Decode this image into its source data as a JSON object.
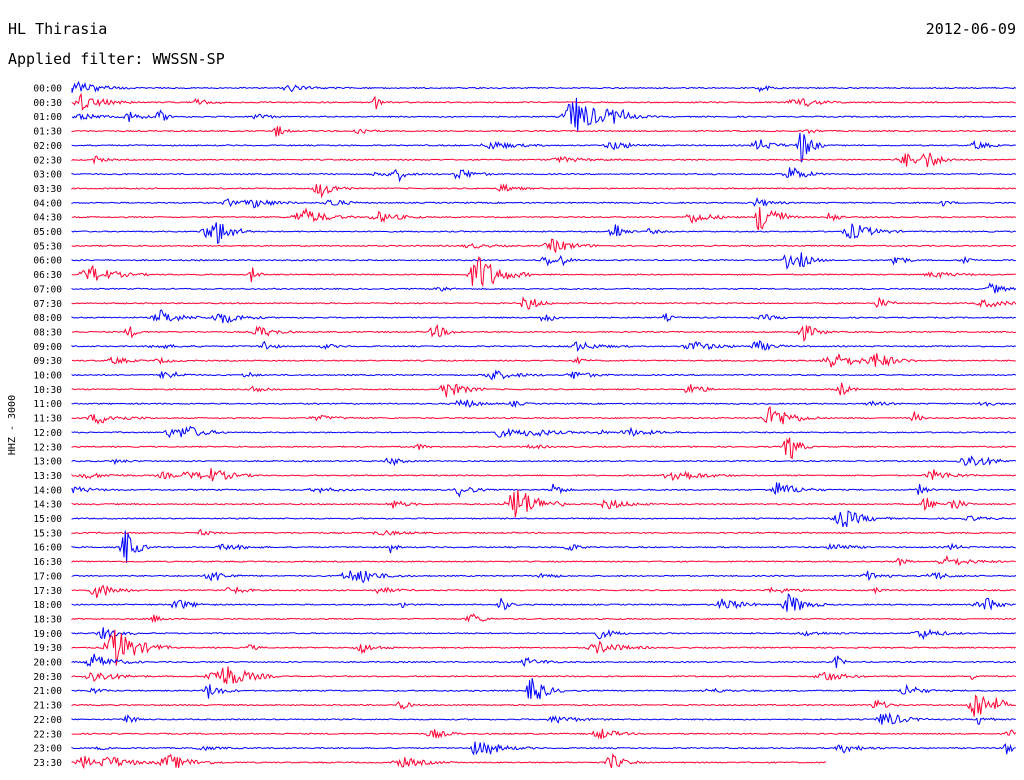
{
  "header": {
    "station": "HL Thirasia",
    "date": "2012-06-09",
    "filter_label": "Applied filter: WWSSN-SP"
  },
  "chart_data": {
    "type": "line",
    "ylabel": "HHZ - 3000",
    "grid": false,
    "series_colors": [
      "#0000ff",
      "#ff0033"
    ],
    "rows": [
      "00:00",
      "00:30",
      "01:00",
      "01:30",
      "02:00",
      "02:30",
      "03:00",
      "03:30",
      "04:00",
      "04:30",
      "05:00",
      "05:30",
      "06:00",
      "06:30",
      "07:00",
      "07:30",
      "08:00",
      "08:30",
      "09:00",
      "09:30",
      "10:00",
      "10:30",
      "11:00",
      "11:30",
      "12:00",
      "12:30",
      "13:00",
      "13:30",
      "14:00",
      "14:30",
      "15:00",
      "15:30",
      "16:00",
      "16:30",
      "17:00",
      "17:30",
      "18:00",
      "18:30",
      "19:00",
      "19:30",
      "20:00",
      "20:30",
      "21:00",
      "21:30",
      "22:00",
      "22:30",
      "23:00",
      "23:30"
    ],
    "trace_fraction_of_window": [
      1,
      1,
      1,
      1,
      1,
      1,
      1,
      1,
      1,
      1,
      1,
      1,
      1,
      1,
      1,
      1,
      1,
      1,
      1,
      1,
      1,
      1,
      1,
      1,
      1,
      1,
      1,
      1,
      1,
      1,
      1,
      1,
      1,
      1,
      1,
      1,
      1,
      1,
      1,
      1,
      1,
      1,
      1,
      1,
      1,
      1,
      1,
      0.8
    ]
  }
}
